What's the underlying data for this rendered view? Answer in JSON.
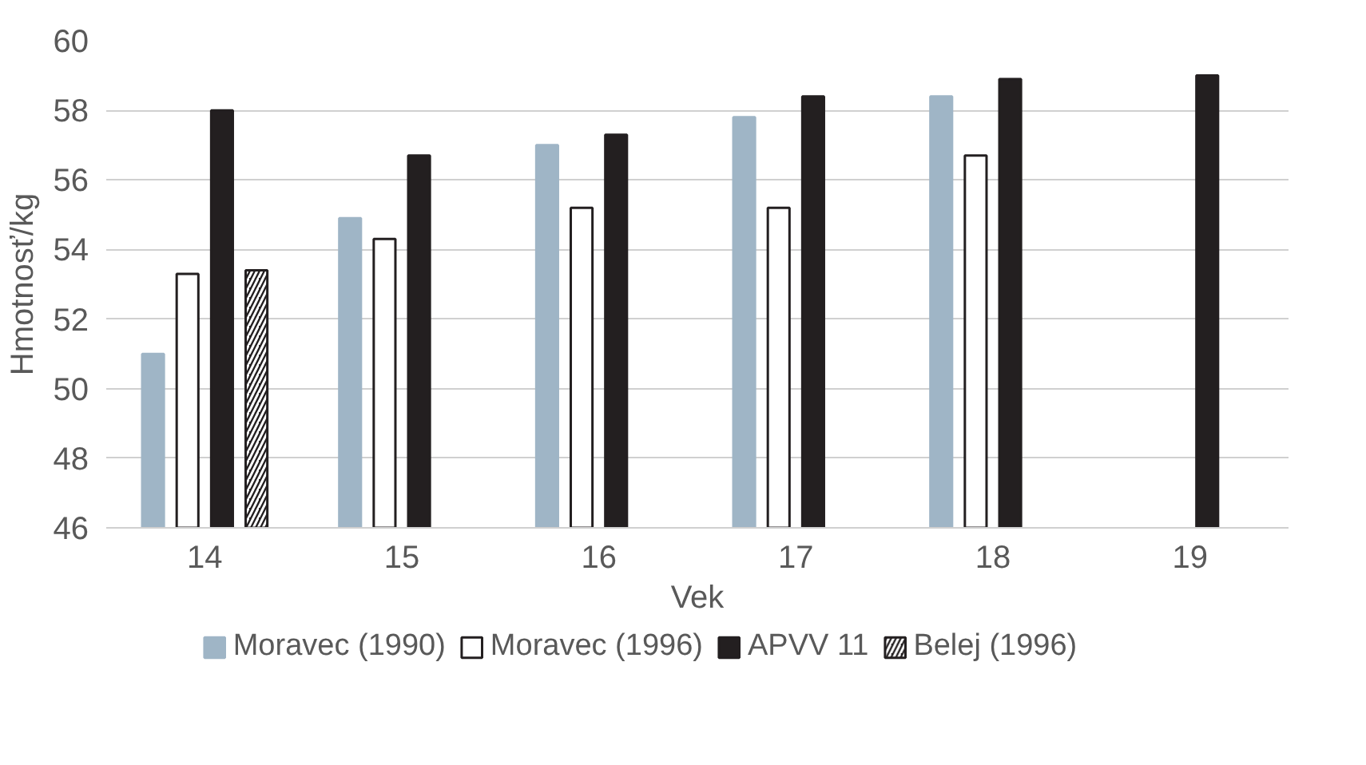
{
  "chart_data": {
    "type": "bar",
    "xlabel": "Vek",
    "ylabel": "Hmotnosť/kg",
    "categories": [
      "14",
      "15",
      "16",
      "17",
      "18",
      "19"
    ],
    "series": [
      {
        "name": "Moravec (1990)",
        "color": "#9fb5c6",
        "values": [
          51.0,
          54.9,
          57.0,
          57.8,
          58.4,
          null
        ]
      },
      {
        "name": "Moravec (1996)",
        "color": "#ffffff",
        "values": [
          53.3,
          54.3,
          55.2,
          55.2,
          56.7,
          null
        ]
      },
      {
        "name": "APVV 11",
        "color": "#231f20",
        "values": [
          58.0,
          56.7,
          57.3,
          58.4,
          58.9,
          59.0
        ]
      },
      {
        "name": "Belej (1996)",
        "color": "#231f20",
        "values": [
          53.4,
          null,
          null,
          null,
          null,
          null
        ]
      }
    ],
    "ylim": [
      46,
      60
    ],
    "yticks": [
      46,
      48,
      50,
      52,
      54,
      56,
      58,
      60
    ],
    "grid": "y",
    "legend": "bottom"
  }
}
